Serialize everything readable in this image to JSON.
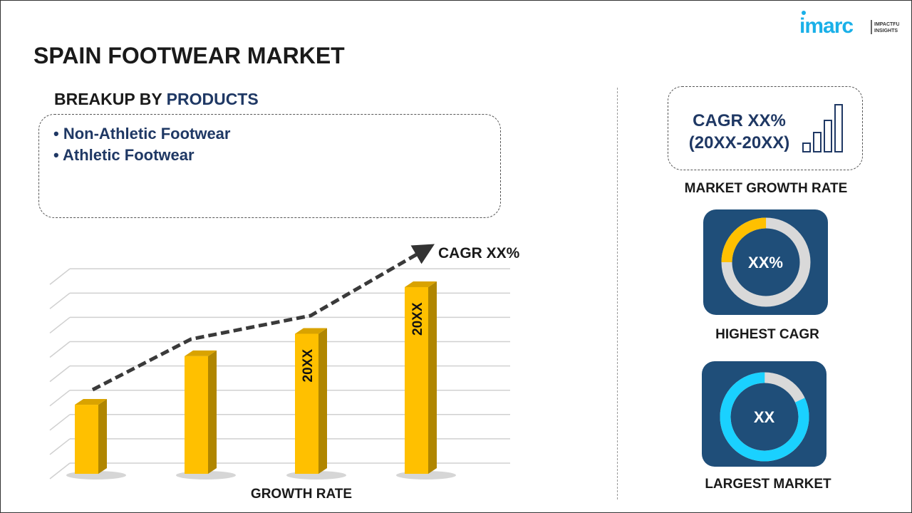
{
  "title": "SPAIN FOOTWEAR MARKET",
  "breakup": {
    "prefix": "BREAKUP BY ",
    "highlight": "PRODUCTS",
    "items": [
      "• Non-Athletic Footwear",
      "• Athletic Footwear"
    ]
  },
  "logo": {
    "brand": "imarc",
    "tagline1": "IMPACTFUL",
    "tagline2": "INSIGHTS"
  },
  "growth": {
    "line1": "CAGR XX%",
    "line2": "(20XX-20XX)",
    "label": "MARKET GROWTH RATE"
  },
  "highest": {
    "value": "XX%",
    "label": "HIGHEST CAGR",
    "fraction": 0.25,
    "accent": "#ffc000"
  },
  "largest": {
    "value": "XX",
    "label": "LARGEST MARKET",
    "fraction": 0.82,
    "accent": "#1ad1ff"
  },
  "chart_data": {
    "type": "bar",
    "categories": [
      "",
      "",
      "",
      ""
    ],
    "values": [
      37,
      63,
      75,
      100
    ],
    "bar_labels": [
      "",
      "",
      "20XX",
      "20XX"
    ],
    "trend_label": "CAGR XX%",
    "xlabel": "GROWTH RATE",
    "ylabel": "",
    "ylim": [
      0,
      108
    ],
    "grid": true,
    "bar_color": "#ffc000"
  },
  "colors": {
    "navy": "#1f3864",
    "card": "#1f4e79",
    "yellow": "#ffc000",
    "cyan": "#1ad1ff"
  }
}
